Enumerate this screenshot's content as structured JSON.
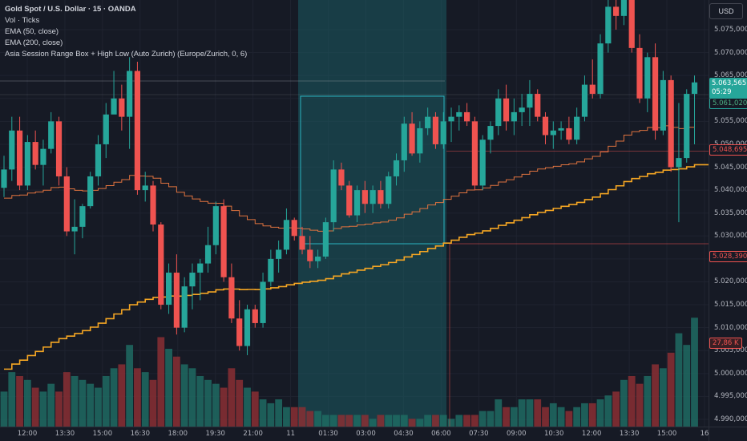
{
  "legend": {
    "title": "Gold Spot / U.S. Dollar · 15 · OANDA",
    "vol": "Vol · Ticks",
    "ema50": "EMA (50, close)",
    "ema200": "EMA (200, close)",
    "asia": "Asia Session Range Box + High Low (Auto Zurich) (Europe/Zurich, 0, 6)"
  },
  "currency_button": "USD",
  "price_tags": {
    "last_price": "5.063,565",
    "countdown": "05:29",
    "ema50_value": "5.061,020",
    "asia_high": "5.048,695",
    "asia_low": "5.028,390",
    "volume_value": "27,86 K"
  },
  "colors": {
    "background": "#161a25",
    "up": "#26a69a",
    "down": "#ef5350",
    "ema50": "#e0733f",
    "ema200": "#f5a623",
    "asia_box": "#2ab4c0"
  },
  "chart_data": {
    "type": "candlestick",
    "symbol": "Gold Spot / U.S. Dollar",
    "interval": "15",
    "source": "OANDA",
    "y_axis": {
      "ticks": [
        "5.075,000",
        "5.070,000",
        "5.065,000",
        "5.060,000",
        "5.055,000",
        "5.050,000",
        "5.045,000",
        "5.040,000",
        "5.035,000",
        "5.030,000",
        "5.025,000",
        "5.020,000",
        "5.015,000",
        "5.010,000",
        "5.005,000",
        "5.000,000",
        "4.995,000",
        "4.990,000"
      ],
      "values": [
        5075,
        5070,
        5065,
        5060,
        5055,
        5050,
        5045,
        5040,
        5035,
        5030,
        5025,
        5020,
        5015,
        5010,
        5005,
        5000,
        4995,
        4990
      ]
    },
    "x_axis": {
      "labels": [
        "12:00",
        "13:30",
        "15:00",
        "16:30",
        "18:00",
        "19:30",
        "21:00",
        "11",
        "01:30",
        "03:00",
        "04:30",
        "06:00",
        "07:30",
        "09:00",
        "10:30",
        "12:00",
        "13:30",
        "15:00",
        "16"
      ]
    },
    "asia_session": {
      "high": 5048.695,
      "low": 5028.39
    },
    "candles": [
      [
        5040.5,
        5047.5,
        5038.5,
        5044.5
      ],
      [
        5044.5,
        5056,
        5042,
        5053
      ],
      [
        5053,
        5056,
        5040,
        5041
      ],
      [
        5041,
        5052,
        5040,
        5050.5
      ],
      [
        5050.5,
        5053,
        5044.5,
        5045.5
      ],
      [
        5045.5,
        5051,
        5041,
        5049
      ],
      [
        5049,
        5057,
        5048,
        5055
      ],
      [
        5055,
        5056,
        5041,
        5043
      ],
      [
        5043,
        5045,
        5030,
        5031
      ],
      [
        5031,
        5038,
        5026,
        5032
      ],
      [
        5032,
        5037,
        5029.5,
        5036.5
      ],
      [
        5036.5,
        5044,
        5036,
        5043
      ],
      [
        5043,
        5052,
        5041,
        5050
      ],
      [
        5050,
        5059,
        5047,
        5056.5
      ],
      [
        5056.5,
        5066,
        5057,
        5060
      ],
      [
        5060,
        5063,
        5053,
        5056
      ],
      [
        5056,
        5069,
        5049,
        5066
      ],
      [
        5066,
        5068,
        5039,
        5040
      ],
      [
        5040,
        5044,
        5037.5,
        5041
      ],
      [
        5041,
        5042,
        5031,
        5032.5
      ],
      [
        5032.5,
        5033,
        5014,
        5015
      ],
      [
        5015,
        5024,
        5013,
        5022
      ],
      [
        5022,
        5026,
        5008.5,
        5010
      ],
      [
        5010,
        5021,
        5009,
        5019
      ],
      [
        5019,
        5024,
        5014,
        5022
      ],
      [
        5022,
        5025,
        5016,
        5024
      ],
      [
        5024,
        5032,
        5022,
        5028
      ],
      [
        5028,
        5037.5,
        5026,
        5036.5
      ],
      [
        5036.5,
        5038,
        5020,
        5021
      ],
      [
        5021,
        5024,
        5011,
        5012
      ],
      [
        5012,
        5016,
        5005,
        5006
      ],
      [
        5006,
        5015,
        5004,
        5014
      ],
      [
        5014,
        5015,
        5010,
        5011
      ],
      [
        5011,
        5022,
        5010,
        5020
      ],
      [
        5020,
        5027,
        5019,
        5025
      ],
      [
        5025,
        5029,
        5022,
        5027
      ],
      [
        5027,
        5036,
        5026,
        5033.5
      ],
      [
        5033.5,
        5034,
        5029,
        5030
      ],
      [
        5030,
        5032,
        5026,
        5027
      ],
      [
        5027,
        5030,
        5023,
        5024.5
      ],
      [
        5024.5,
        5027,
        5023,
        5025.5
      ],
      [
        5025.5,
        5034,
        5025,
        5033
      ],
      [
        5033,
        5046.5,
        5031,
        5044.5
      ],
      [
        5044.5,
        5046,
        5040,
        5041
      ],
      [
        5041,
        5042,
        5034,
        5034.5
      ],
      [
        5034.5,
        5041,
        5033,
        5040
      ],
      [
        5040,
        5042,
        5035,
        5037
      ],
      [
        5037,
        5041,
        5035,
        5040
      ],
      [
        5040,
        5042,
        5036,
        5037
      ],
      [
        5037,
        5044,
        5036,
        5043
      ],
      [
        5043,
        5048,
        5041,
        5046.5
      ],
      [
        5046.5,
        5056,
        5044,
        5054.5
      ],
      [
        5054.5,
        5057,
        5047.5,
        5048
      ],
      [
        5048,
        5055,
        5046,
        5053.5
      ],
      [
        5053.5,
        5058,
        5052,
        5056
      ],
      [
        5056,
        5057,
        5049,
        5050
      ],
      [
        5050,
        5057,
        5049,
        5055
      ],
      [
        5055,
        5058,
        5050.5,
        5056
      ],
      [
        5056,
        5058.5,
        5053,
        5057
      ],
      [
        5057,
        5059,
        5054,
        5055
      ],
      [
        5055,
        5056,
        5040,
        5041
      ],
      [
        5041,
        5052,
        5040,
        5051
      ],
      [
        5051,
        5055,
        5048,
        5054
      ],
      [
        5054,
        5062,
        5052,
        5060
      ],
      [
        5060,
        5063,
        5053,
        5055
      ],
      [
        5055,
        5060,
        5052,
        5057
      ],
      [
        5057,
        5061,
        5054,
        5058
      ],
      [
        5058,
        5064,
        5054,
        5061
      ],
      [
        5061,
        5062,
        5055,
        5056
      ],
      [
        5056,
        5057,
        5050,
        5052
      ],
      [
        5052,
        5055,
        5049,
        5053
      ],
      [
        5053,
        5055,
        5051,
        5053.5
      ],
      [
        5053.5,
        5056,
        5050,
        5051
      ],
      [
        5051,
        5058,
        5050,
        5056
      ],
      [
        5056,
        5065,
        5055,
        5063
      ],
      [
        5063,
        5068.5,
        5060,
        5061
      ],
      [
        5061,
        5074,
        5060,
        5072
      ],
      [
        5072,
        5082,
        5070,
        5080
      ],
      [
        5080,
        5083,
        5075,
        5078
      ],
      [
        5078,
        5086,
        5076,
        5084
      ],
      [
        5084,
        5087,
        5070,
        5071
      ],
      [
        5071,
        5074,
        5059,
        5060
      ],
      [
        5060,
        5070,
        5057,
        5069
      ],
      [
        5069,
        5072,
        5051,
        5053
      ],
      [
        5053,
        5066,
        5052,
        5064
      ],
      [
        5064,
        5065,
        5044,
        5045
      ],
      [
        5045,
        5059,
        5033,
        5047
      ],
      [
        5047,
        5062,
        5046,
        5061
      ],
      [
        5061,
        5065,
        5050,
        5063.5
      ]
    ],
    "volume_display_max": 33,
    "volume_value_label": "27,86 K",
    "volumes": [
      9,
      14,
      13,
      12,
      10,
      9,
      11,
      9,
      14,
      13,
      12,
      11,
      10,
      13,
      15,
      16,
      21,
      15,
      14,
      12,
      23,
      20,
      18,
      16,
      15,
      13,
      12,
      11,
      10,
      15,
      12,
      10,
      9,
      7,
      6,
      7,
      5,
      5,
      5,
      4,
      4,
      3,
      3,
      3,
      3,
      3,
      3,
      2,
      3,
      3,
      3,
      3,
      2,
      2,
      3,
      3,
      3,
      2,
      3,
      3,
      3,
      4,
      4,
      7,
      5,
      5,
      7,
      7,
      7,
      5,
      6,
      5,
      4,
      5,
      6,
      6,
      7,
      8,
      9,
      12,
      13,
      11,
      13,
      16,
      15,
      19,
      24,
      21,
      28
    ]
  }
}
